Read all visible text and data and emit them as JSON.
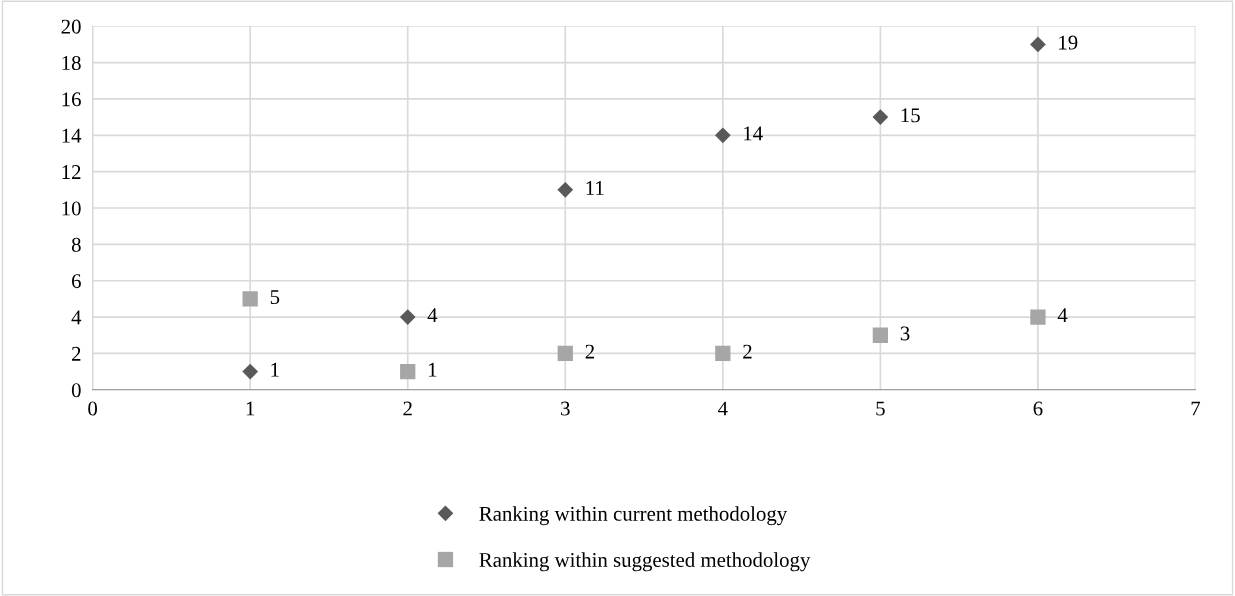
{
  "chart_data": {
    "type": "scatter",
    "x": [
      1,
      2,
      3,
      4,
      5,
      6
    ],
    "series": [
      {
        "name": "Ranking within current methodology",
        "color": "#595959",
        "marker": "diamond",
        "values": [
          1,
          4,
          11,
          14,
          15,
          19
        ]
      },
      {
        "name": "Ranking within suggested methodology",
        "color": "#a6a6a6",
        "marker": "square",
        "values": [
          5,
          1,
          2,
          2,
          3,
          4
        ]
      }
    ],
    "xlim": [
      0,
      7
    ],
    "xticks": [
      0,
      1,
      2,
      3,
      4,
      5,
      6,
      7
    ],
    "ylim": [
      0,
      20
    ],
    "yticks": [
      0,
      2,
      4,
      6,
      8,
      10,
      12,
      14,
      16,
      18,
      20
    ],
    "grid": true,
    "legend": "bottom",
    "data_labels": true
  }
}
